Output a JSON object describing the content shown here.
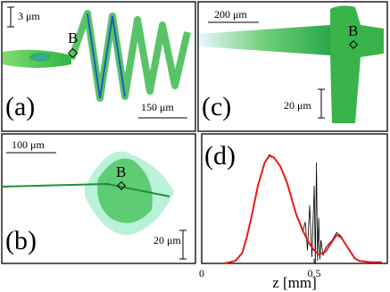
{
  "panels": [
    {
      "label": "(a)",
      "texts": [
        "3 μm",
        "B",
        "150 μm"
      ]
    },
    {
      "label": "(c)",
      "texts": [
        "200 μm",
        "B",
        "20 μm"
      ]
    },
    {
      "label": "(b)",
      "texts": [
        "100 μm",
        "B",
        "20 μm"
      ]
    }
  ],
  "chart_data": {
    "type": "line",
    "label": "(d)",
    "xlabel": "z [mm]",
    "xlim": [
      0,
      0.825
    ],
    "ylim": [
      0,
      1
    ],
    "xticks": [
      0,
      0.5
    ],
    "series": [
      {
        "color": "#000000",
        "x": [
          0.1,
          0.15,
          0.18,
          0.2,
          0.22,
          0.25,
          0.28,
          0.3,
          0.32,
          0.35,
          0.38,
          0.4,
          0.42,
          0.45,
          0.46,
          0.47,
          0.48,
          0.49,
          0.5,
          0.505,
          0.51,
          0.515,
          0.52,
          0.525,
          0.53,
          0.54,
          0.55,
          0.58,
          0.6,
          0.62,
          0.65,
          0.68,
          0.7,
          0.75,
          0.8
        ],
        "values": [
          0.0,
          0.02,
          0.08,
          0.2,
          0.35,
          0.6,
          0.78,
          0.84,
          0.82,
          0.75,
          0.62,
          0.5,
          0.38,
          0.25,
          0.32,
          0.1,
          0.45,
          0.05,
          0.6,
          0.0,
          0.78,
          0.02,
          0.35,
          0.03,
          0.18,
          0.06,
          0.12,
          0.18,
          0.24,
          0.21,
          0.12,
          0.04,
          0.02,
          0.01,
          0.01
        ]
      },
      {
        "color": "#e8191c",
        "x": [
          0.1,
          0.15,
          0.18,
          0.2,
          0.22,
          0.25,
          0.28,
          0.3,
          0.32,
          0.35,
          0.38,
          0.4,
          0.42,
          0.45,
          0.48,
          0.5,
          0.52,
          0.55,
          0.58,
          0.6,
          0.62,
          0.65,
          0.68,
          0.7,
          0.75,
          0.8
        ],
        "values": [
          0.0,
          0.02,
          0.08,
          0.2,
          0.35,
          0.6,
          0.78,
          0.83,
          0.82,
          0.75,
          0.62,
          0.5,
          0.38,
          0.25,
          0.15,
          0.1,
          0.07,
          0.09,
          0.17,
          0.22,
          0.2,
          0.12,
          0.04,
          0.02,
          0.01,
          0.01
        ]
      }
    ]
  }
}
